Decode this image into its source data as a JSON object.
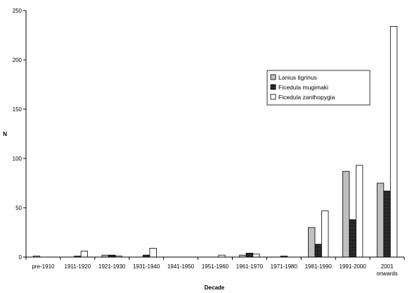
{
  "chart_data": {
    "type": "bar",
    "title": "",
    "xlabel": "Decade",
    "ylabel": "N",
    "ylim": [
      0,
      250
    ],
    "yticks": [
      0,
      50,
      100,
      150,
      200,
      250
    ],
    "grid": false,
    "legend_position": "upper-right",
    "categories": [
      [
        "pre-1910"
      ],
      [
        "1911-1920"
      ],
      [
        "1921-1930"
      ],
      [
        "1931-1940"
      ],
      [
        "1941-1950"
      ],
      [
        "1951-1960"
      ],
      [
        "1961-1970"
      ],
      [
        "1971-1980"
      ],
      [
        "1981-1990"
      ],
      [
        "1991-2000"
      ],
      [
        "2001",
        "onwards"
      ]
    ],
    "series": [
      {
        "name": "Lanius tigrinus",
        "fill": "#c0c0c0",
        "pattern": "solid",
        "values": [
          1,
          0,
          2,
          0,
          0,
          0,
          2,
          0,
          30,
          87,
          75
        ]
      },
      {
        "name": "Ficedula mugimaki",
        "fill": "#111111",
        "pattern": "dotted-dark",
        "values": [
          0,
          1,
          2,
          2,
          0,
          0,
          4,
          1,
          13,
          38,
          67
        ]
      },
      {
        "name": "Ficedula zanthopygia",
        "fill": "#ffffff",
        "pattern": "solid",
        "values": [
          0,
          6,
          1,
          9,
          0,
          2,
          3,
          0,
          47,
          93,
          234
        ]
      }
    ]
  }
}
